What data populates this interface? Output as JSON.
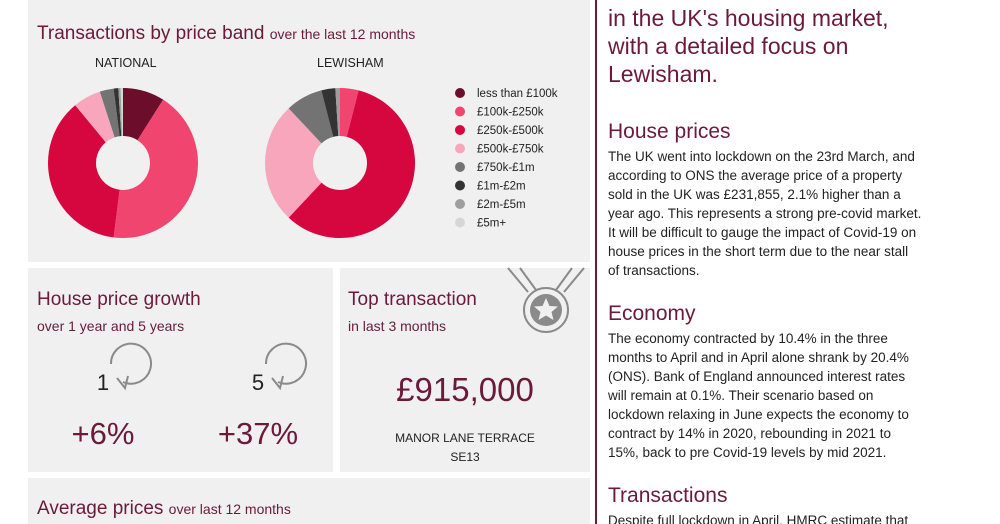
{
  "intro": {
    "lines": [
      "in the UK's housing market,",
      "with a detailed focus on",
      "Lewisham."
    ]
  },
  "price_band": {
    "title": "Transactions by price band",
    "subtitle": "over the last 12 months",
    "categories": [
      "less than £100k",
      "£100k-£250k",
      "£250k-£500k",
      "£500k-£750k",
      "£750k-£1m",
      "£1m-£2m",
      "£2m-£5m",
      "£5m+"
    ],
    "colors": [
      "#6b0d2b",
      "#f0456e",
      "#d6063f",
      "#f7a6bb",
      "#737373",
      "#333333",
      "#9e9e9e",
      "#d6d6d6"
    ],
    "charts": [
      {
        "type": "pie",
        "title": "NATIONAL",
        "values": [
          9,
          43,
          37,
          6,
          3,
          1,
          0.5,
          0.5
        ]
      },
      {
        "type": "pie",
        "title": "LEWISHAM",
        "values": [
          0,
          4,
          58,
          26,
          8,
          3,
          1,
          0
        ]
      }
    ]
  },
  "growth": {
    "title": "House price growth",
    "subtitle": "over 1 year and 5 years",
    "items": [
      {
        "years": "1",
        "value": "+6%"
      },
      {
        "years": "5",
        "value": "+37%"
      }
    ]
  },
  "top_transaction": {
    "title": "Top transaction",
    "subtitle": "in last 3 months",
    "price": "£915,000",
    "street": "MANOR LANE TERRACE",
    "postcode": "SE13"
  },
  "average": {
    "title": "Average prices",
    "subtitle": "over last 12 months"
  },
  "sections": [
    {
      "title": "House prices",
      "lines": [
        "The UK went into lockdown on the 23rd March, and",
        "according to ONS the average price of a property",
        "sold in the UK was £231,855, 2.1% higher than a",
        "year ago. This represents a strong pre-covid market.",
        "It will be difficult to gauge the impact of Covid-19 on",
        "house prices in the short term due to the near stall",
        "of transactions."
      ]
    },
    {
      "title": "Economy",
      "lines": [
        "The economy contracted by 10.4% in the three",
        "months to April and in April alone shrank by 20.4%",
        "(ONS). Bank of England announced interest rates",
        "will remain at 0.1%. Their scenario based on",
        "lockdown relaxing in June expects the economy to",
        "contract by 14% in 2020, rebounding in 2021 to",
        "15%, back to pre Covid-19 levels by mid 2021."
      ]
    },
    {
      "title": "Transactions",
      "lines": [
        "Despite full lockdown in April, HMRC estimate that"
      ]
    }
  ]
}
